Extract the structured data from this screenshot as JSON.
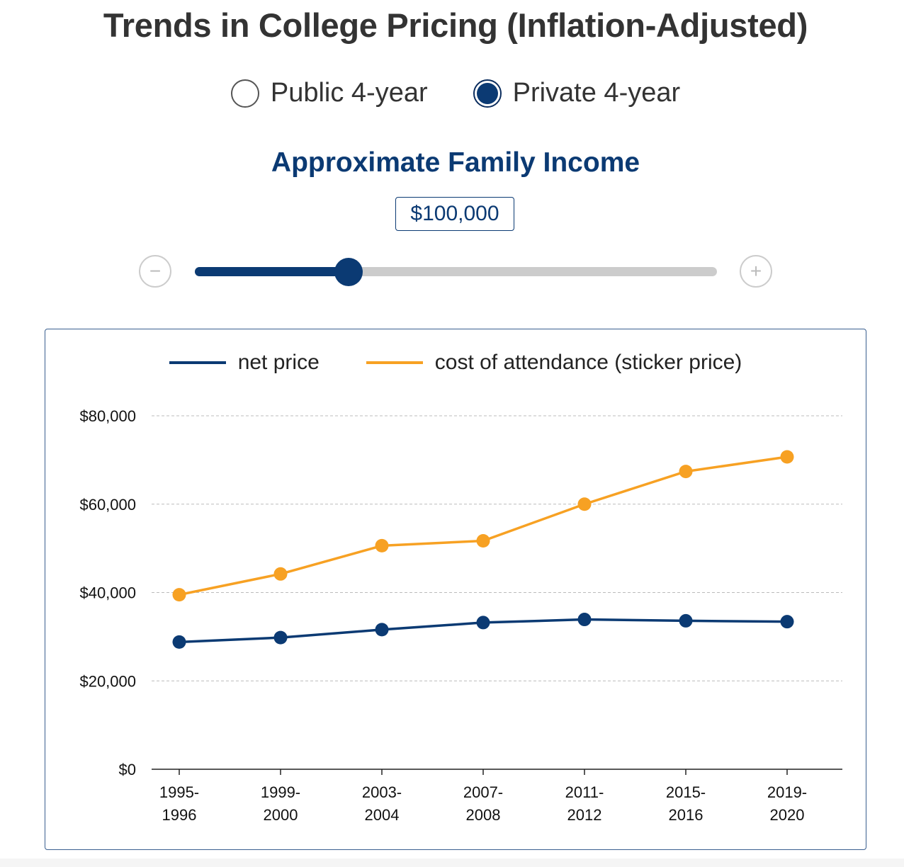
{
  "header": {
    "title": "Trends in College Pricing (Inflation-Adjusted)"
  },
  "school_type": {
    "options": [
      {
        "label": "Public 4-year",
        "selected": false
      },
      {
        "label": "Private 4-year",
        "selected": true
      }
    ]
  },
  "income": {
    "title": "Approximate Family Income",
    "value_label": "$100,000",
    "minus_symbol": "−",
    "plus_symbol": "+",
    "slider_fraction": 0.295
  },
  "colors": {
    "net_price": "#0b3a73",
    "sticker_price": "#f7a123",
    "accent": "#0b3a73",
    "grid": "#bbbbbb"
  },
  "chart_data": {
    "type": "line",
    "title": "",
    "xlabel": "",
    "ylabel": "",
    "ylim": [
      0,
      80000
    ],
    "y_ticks": [
      0,
      20000,
      40000,
      60000,
      80000
    ],
    "y_tick_labels": [
      "$0",
      "$20,000",
      "$40,000",
      "$60,000",
      "$80,000"
    ],
    "grid": true,
    "legend": "top-center",
    "categories": [
      [
        "1995-",
        "1996"
      ],
      [
        "1999-",
        "2000"
      ],
      [
        "2003-",
        "2004"
      ],
      [
        "2007-",
        "2008"
      ],
      [
        "2011-",
        "2012"
      ],
      [
        "2015-",
        "2016"
      ],
      [
        "2019-",
        "2020"
      ]
    ],
    "series": [
      {
        "name": "net price",
        "key": "net_price",
        "values": [
          28800,
          29800,
          31600,
          33200,
          33900,
          33600,
          33400
        ]
      },
      {
        "name": "cost of attendance (sticker price)",
        "key": "sticker_price",
        "values": [
          39500,
          44200,
          50600,
          51700,
          60000,
          67400,
          70700
        ]
      }
    ]
  }
}
